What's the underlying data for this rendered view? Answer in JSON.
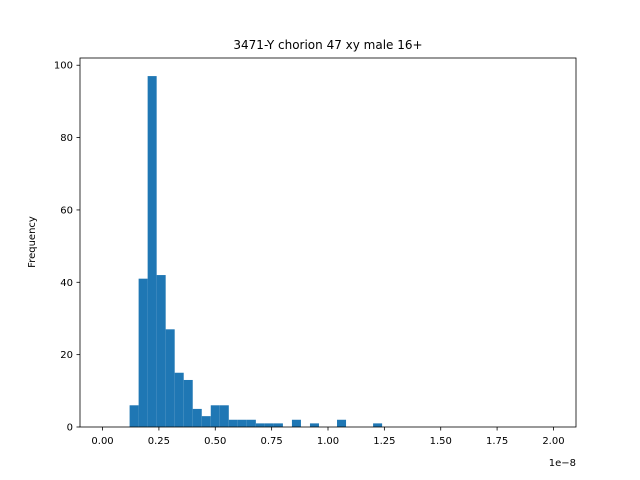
{
  "chart_data": {
    "type": "bar",
    "title": "3471-Y chorion 47 xy male 16+",
    "xlabel": "",
    "ylabel": "Frequency",
    "x_offset_label": "1e−8",
    "xlim": [
      -0.1,
      2.1
    ],
    "ylim": [
      0,
      102
    ],
    "bin_width": 0.04,
    "x": [
      0.12,
      0.16,
      0.2,
      0.24,
      0.28,
      0.32,
      0.36,
      0.4,
      0.44,
      0.48,
      0.52,
      0.56,
      0.6,
      0.64,
      0.68,
      0.72,
      0.76,
      0.84,
      0.92,
      1.04,
      1.2
    ],
    "values": [
      6,
      41,
      97,
      42,
      27,
      15,
      13,
      5,
      3,
      6,
      6,
      2,
      2,
      2,
      1,
      1,
      1,
      2,
      1,
      2,
      1
    ],
    "x_ticks": [
      0.0,
      0.25,
      0.5,
      0.75,
      1.0,
      1.25,
      1.5,
      1.75,
      2.0
    ],
    "x_tick_labels": [
      "0.00",
      "0.25",
      "0.50",
      "0.75",
      "1.00",
      "1.25",
      "1.50",
      "1.75",
      "2.00"
    ],
    "y_ticks": [
      0,
      20,
      40,
      60,
      80,
      100
    ],
    "y_tick_labels": [
      "0",
      "20",
      "40",
      "60",
      "80",
      "100"
    ],
    "bar_color": "#1f77b4",
    "grid": false
  }
}
